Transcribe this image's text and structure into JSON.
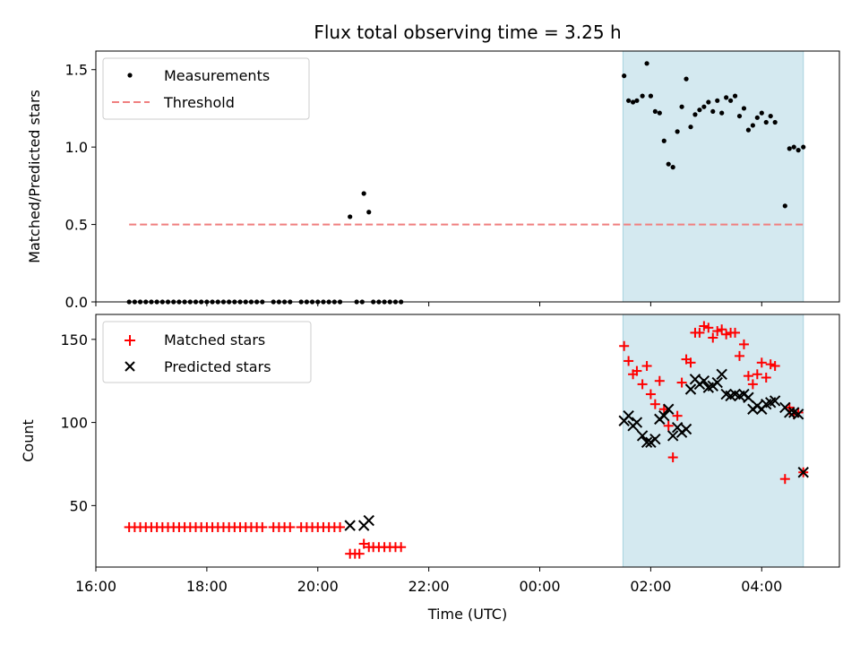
{
  "chart_data": [
    {
      "type": "scatter",
      "title": "Flux total observing time = 3.25 h",
      "xlabel": "",
      "ylabel": "Matched/Predicted stars",
      "xlim": [
        16.0,
        29.4
      ],
      "ylim": [
        0.0,
        1.62
      ],
      "yticks": [
        0.0,
        0.5,
        1.0,
        1.5
      ],
      "ytick_labels": [
        "0.0",
        "0.5",
        "1.0",
        "1.5"
      ],
      "shaded_interval": {
        "x_start": 25.5,
        "x_end": 28.75,
        "color": "#d4e9f0"
      },
      "legend": {
        "location": "upper left",
        "entries": [
          "Measurements",
          "Threshold"
        ]
      },
      "series": [
        {
          "name": "Measurements",
          "color": "#000000",
          "points": [
            [
              16.6,
              0
            ],
            [
              16.7,
              0
            ],
            [
              16.8,
              0
            ],
            [
              16.9,
              0
            ],
            [
              17.0,
              0
            ],
            [
              17.1,
              0
            ],
            [
              17.2,
              0
            ],
            [
              17.3,
              0
            ],
            [
              17.4,
              0
            ],
            [
              17.5,
              0
            ],
            [
              17.6,
              0
            ],
            [
              17.7,
              0
            ],
            [
              17.8,
              0
            ],
            [
              17.9,
              0
            ],
            [
              18.0,
              0
            ],
            [
              18.1,
              0
            ],
            [
              18.2,
              0
            ],
            [
              18.3,
              0
            ],
            [
              18.4,
              0
            ],
            [
              18.5,
              0
            ],
            [
              18.6,
              0
            ],
            [
              18.7,
              0
            ],
            [
              18.8,
              0
            ],
            [
              18.9,
              0
            ],
            [
              19.0,
              0
            ],
            [
              19.2,
              0
            ],
            [
              19.3,
              0
            ],
            [
              19.4,
              0
            ],
            [
              19.5,
              0
            ],
            [
              19.7,
              0
            ],
            [
              19.8,
              0
            ],
            [
              19.9,
              0
            ],
            [
              20.0,
              0
            ],
            [
              20.1,
              0
            ],
            [
              20.2,
              0
            ],
            [
              20.3,
              0
            ],
            [
              20.4,
              0
            ],
            [
              20.7,
              0
            ],
            [
              20.8,
              0
            ],
            [
              21.0,
              0
            ],
            [
              21.1,
              0
            ],
            [
              21.2,
              0
            ],
            [
              21.3,
              0
            ],
            [
              21.4,
              0
            ],
            [
              21.5,
              0
            ],
            [
              20.58,
              0.55
            ],
            [
              20.83,
              0.7
            ],
            [
              20.92,
              0.58
            ],
            [
              25.52,
              1.46
            ],
            [
              25.6,
              1.3
            ],
            [
              25.68,
              1.29
            ],
            [
              25.75,
              1.3
            ],
            [
              25.85,
              1.33
            ],
            [
              25.93,
              1.54
            ],
            [
              26.0,
              1.33
            ],
            [
              26.08,
              1.23
            ],
            [
              26.16,
              1.22
            ],
            [
              26.24,
              1.04
            ],
            [
              26.32,
              0.89
            ],
            [
              26.4,
              0.87
            ],
            [
              26.48,
              1.1
            ],
            [
              26.56,
              1.26
            ],
            [
              26.64,
              1.44
            ],
            [
              26.72,
              1.13
            ],
            [
              26.8,
              1.21
            ],
            [
              26.88,
              1.24
            ],
            [
              26.96,
              1.26
            ],
            [
              27.04,
              1.29
            ],
            [
              27.12,
              1.23
            ],
            [
              27.2,
              1.3
            ],
            [
              27.28,
              1.22
            ],
            [
              27.36,
              1.32
            ],
            [
              27.44,
              1.3
            ],
            [
              27.52,
              1.33
            ],
            [
              27.6,
              1.2
            ],
            [
              27.68,
              1.25
            ],
            [
              27.76,
              1.11
            ],
            [
              27.84,
              1.14
            ],
            [
              27.92,
              1.19
            ],
            [
              28.0,
              1.22
            ],
            [
              28.08,
              1.16
            ],
            [
              28.16,
              1.2
            ],
            [
              28.24,
              1.16
            ],
            [
              28.42,
              0.62
            ],
            [
              28.5,
              0.99
            ],
            [
              28.58,
              1.0
            ],
            [
              28.66,
              0.98
            ],
            [
              28.75,
              1.0
            ]
          ]
        },
        {
          "name": "Threshold",
          "color": "#f08080",
          "style": "dashed",
          "x": [
            16.6,
            28.75
          ],
          "y": [
            0.5,
            0.5
          ]
        }
      ]
    },
    {
      "type": "scatter",
      "title": "",
      "xlabel": "Time (UTC)",
      "ylabel": "Count",
      "xlim": [
        16.0,
        29.4
      ],
      "ylim": [
        13,
        165
      ],
      "xticks": [
        16,
        18,
        20,
        22,
        24,
        26,
        28
      ],
      "xtick_labels": [
        "16:00",
        "18:00",
        "20:00",
        "22:00",
        "00:00",
        "02:00",
        "04:00"
      ],
      "yticks": [
        50,
        100,
        150
      ],
      "ytick_labels": [
        "50",
        "100",
        "150"
      ],
      "shaded_interval": {
        "x_start": 25.5,
        "x_end": 28.75,
        "color": "#d4e9f0"
      },
      "legend": {
        "location": "upper left",
        "entries": [
          "Matched stars",
          "Predicted stars"
        ]
      },
      "series": [
        {
          "name": "Matched stars",
          "color": "#ff0000",
          "marker": "+",
          "points": [
            [
              16.6,
              37
            ],
            [
              16.7,
              37
            ],
            [
              16.8,
              37
            ],
            [
              16.9,
              37
            ],
            [
              17.0,
              37
            ],
            [
              17.1,
              37
            ],
            [
              17.2,
              37
            ],
            [
              17.3,
              37
            ],
            [
              17.4,
              37
            ],
            [
              17.5,
              37
            ],
            [
              17.6,
              37
            ],
            [
              17.7,
              37
            ],
            [
              17.8,
              37
            ],
            [
              17.9,
              37
            ],
            [
              18.0,
              37
            ],
            [
              18.1,
              37
            ],
            [
              18.2,
              37
            ],
            [
              18.3,
              37
            ],
            [
              18.4,
              37
            ],
            [
              18.5,
              37
            ],
            [
              18.6,
              37
            ],
            [
              18.7,
              37
            ],
            [
              18.8,
              37
            ],
            [
              18.9,
              37
            ],
            [
              19.0,
              37
            ],
            [
              19.2,
              37
            ],
            [
              19.3,
              37
            ],
            [
              19.4,
              37
            ],
            [
              19.5,
              37
            ],
            [
              19.7,
              37
            ],
            [
              19.8,
              37
            ],
            [
              19.9,
              37
            ],
            [
              20.0,
              37
            ],
            [
              20.1,
              37
            ],
            [
              20.2,
              37
            ],
            [
              20.3,
              37
            ],
            [
              20.4,
              37
            ],
            [
              20.58,
              21
            ],
            [
              20.67,
              21
            ],
            [
              20.75,
              21
            ],
            [
              20.83,
              27
            ],
            [
              20.92,
              25
            ],
            [
              21.0,
              25
            ],
            [
              21.1,
              25
            ],
            [
              21.2,
              25
            ],
            [
              21.3,
              25
            ],
            [
              21.4,
              25
            ],
            [
              21.5,
              25
            ],
            [
              25.52,
              146
            ],
            [
              25.6,
              137
            ],
            [
              25.68,
              129
            ],
            [
              25.75,
              131
            ],
            [
              25.85,
              123
            ],
            [
              25.93,
              134
            ],
            [
              26.0,
              117
            ],
            [
              26.08,
              111
            ],
            [
              26.16,
              125
            ],
            [
              26.24,
              108
            ],
            [
              26.32,
              98
            ],
            [
              26.4,
              79
            ],
            [
              26.48,
              104
            ],
            [
              26.56,
              124
            ],
            [
              26.64,
              138
            ],
            [
              26.72,
              136
            ],
            [
              26.8,
              154
            ],
            [
              26.88,
              154
            ],
            [
              26.96,
              158
            ],
            [
              27.04,
              157
            ],
            [
              27.12,
              151
            ],
            [
              27.2,
              155
            ],
            [
              27.28,
              156
            ],
            [
              27.36,
              153
            ],
            [
              27.44,
              154
            ],
            [
              27.52,
              154
            ],
            [
              27.6,
              140
            ],
            [
              27.68,
              147
            ],
            [
              27.76,
              128
            ],
            [
              27.84,
              123
            ],
            [
              27.92,
              129
            ],
            [
              28.0,
              136
            ],
            [
              28.08,
              127
            ],
            [
              28.16,
              135
            ],
            [
              28.24,
              134
            ],
            [
              28.42,
              66
            ],
            [
              28.5,
              109
            ],
            [
              28.58,
              105
            ],
            [
              28.66,
              106
            ],
            [
              28.75,
              70
            ]
          ]
        },
        {
          "name": "Predicted stars",
          "color": "#000000",
          "marker": "x",
          "points": [
            [
              20.58,
              38
            ],
            [
              20.83,
              38
            ],
            [
              20.92,
              41
            ],
            [
              25.52,
              101
            ],
            [
              25.6,
              104
            ],
            [
              25.68,
              98
            ],
            [
              25.75,
              100
            ],
            [
              25.85,
              92
            ],
            [
              25.93,
              88
            ],
            [
              26.0,
              88
            ],
            [
              26.08,
              90
            ],
            [
              26.16,
              102
            ],
            [
              26.24,
              104
            ],
            [
              26.32,
              108
            ],
            [
              26.4,
              92
            ],
            [
              26.48,
              97
            ],
            [
              26.56,
              94
            ],
            [
              26.64,
              96
            ],
            [
              26.72,
              120
            ],
            [
              26.8,
              126
            ],
            [
              26.88,
              123
            ],
            [
              26.96,
              125
            ],
            [
              27.04,
              121
            ],
            [
              27.12,
              122
            ],
            [
              27.2,
              124
            ],
            [
              27.28,
              129
            ],
            [
              27.36,
              117
            ],
            [
              27.44,
              116
            ],
            [
              27.52,
              117
            ],
            [
              27.6,
              116
            ],
            [
              27.68,
              117
            ],
            [
              27.76,
              115
            ],
            [
              27.84,
              108
            ],
            [
              27.92,
              110
            ],
            [
              28.0,
              108
            ],
            [
              28.08,
              111
            ],
            [
              28.16,
              112
            ],
            [
              28.24,
              113
            ],
            [
              28.42,
              109
            ],
            [
              28.5,
              106
            ],
            [
              28.58,
              106
            ],
            [
              28.66,
              105
            ],
            [
              28.75,
              70
            ]
          ]
        }
      ]
    }
  ]
}
